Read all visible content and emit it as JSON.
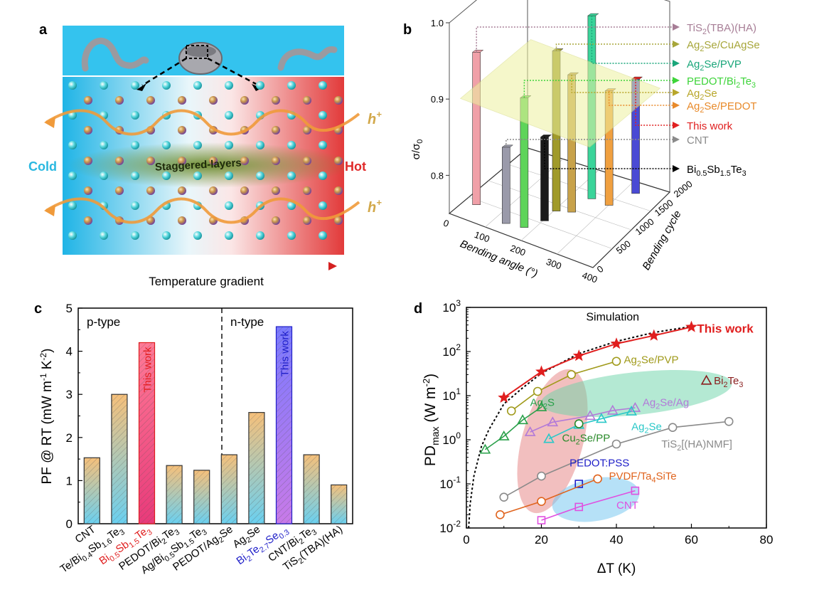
{
  "panel_labels": {
    "a": "a",
    "b": "b",
    "c": "c",
    "d": "d"
  },
  "panel_a": {
    "cold_label": "Cold",
    "hot_label": "Hot",
    "layers_label": "Staggered-layers",
    "carrier_label": "h",
    "carrier_sup": "+",
    "gradient_label": "Temperature gradient",
    "colors": {
      "cold": "#3ac8e6",
      "hot": "#e43a3a",
      "arrow": "#f08a2a",
      "layer_band": "#7e9c3a"
    }
  },
  "panel_b": {
    "zlabel": "σ/σ",
    "zlabel_sub": "0",
    "xlabel": "Bending angle (°)",
    "ylabel": "Bending cycle",
    "z_ticks": [
      "0.8",
      "0.9",
      "1.0"
    ],
    "x_ticks": [
      "0",
      "100",
      "200",
      "300",
      "400"
    ],
    "y_ticks": [
      "0",
      "500",
      "1000",
      "1500",
      "2000"
    ],
    "legend": [
      {
        "name": "TiS2(TBA)(HA)",
        "parts": [
          [
            "TiS",
            ""
          ],
          [
            "2",
            "sub"
          ],
          [
            "(TBA)(HA)",
            ""
          ]
        ],
        "color": "#a77e96"
      },
      {
        "name": "Ag2Se/CuAgSe",
        "parts": [
          [
            "Ag",
            ""
          ],
          [
            "2",
            "sub"
          ],
          [
            "Se/CuAgSe",
            ""
          ]
        ],
        "color": "#a7a63a"
      },
      {
        "name": "Ag2Se/PVP",
        "parts": [
          [
            "Ag",
            ""
          ],
          [
            "2",
            "sub"
          ],
          [
            "Se/PVP",
            ""
          ]
        ],
        "color": "#1aa67a"
      },
      {
        "name": "PEDOT/Bi2Te3",
        "parts": [
          [
            "PEDOT/Bi",
            ""
          ],
          [
            "2",
            "sub"
          ],
          [
            "Te",
            ""
          ],
          [
            "3",
            "sub"
          ]
        ],
        "color": "#3ed43a"
      },
      {
        "name": "Ag2Se",
        "parts": [
          [
            "Ag",
            ""
          ],
          [
            "2",
            "sub"
          ],
          [
            "Se",
            ""
          ]
        ],
        "color": "#b8a62a"
      },
      {
        "name": "Ag2Se/PEDOT",
        "parts": [
          [
            "Ag",
            ""
          ],
          [
            "2",
            "sub"
          ],
          [
            "Se/PEDOT",
            ""
          ]
        ],
        "color": "#e88a2a"
      },
      {
        "name": "This work",
        "parts": [
          [
            "This work",
            ""
          ]
        ],
        "color": "#e02020"
      },
      {
        "name": "CNT",
        "parts": [
          [
            "CNT",
            ""
          ]
        ],
        "color": "#8a8a8a"
      },
      {
        "name": "Bi0.5Sb1.5Te3",
        "parts": [
          [
            "Bi",
            ""
          ],
          [
            "0.5",
            "sub"
          ],
          [
            "Sb",
            ""
          ],
          [
            "1.5",
            "sub"
          ],
          [
            "Te",
            ""
          ],
          [
            "3",
            "sub"
          ]
        ],
        "color": "#000000"
      }
    ]
  },
  "chart_data": [
    {
      "panel": "b",
      "type": "bar",
      "title": "",
      "xlabel": "Bending angle (°)",
      "ylabel": "Bending cycle",
      "zlabel": "σ/σ0",
      "zlim": [
        0.75,
        1.0
      ],
      "series": [
        {
          "name": "TiS2(TBA)(HA)",
          "value": 0.95,
          "color": "#f0a0a8"
        },
        {
          "name": "CNT",
          "value": 0.85,
          "color": "#9a9aaa"
        },
        {
          "name": "PEDOT/Bi2Te3",
          "value": 0.92,
          "color": "#5ed45a"
        },
        {
          "name": "Ag2Se/CuAgSe",
          "value": 0.96,
          "color": "#a09a2a"
        },
        {
          "name": "Bi0.5Sb1.5Te3",
          "value": 0.86,
          "color": "#1a1a1a"
        },
        {
          "name": "Ag2Se",
          "value": 0.93,
          "color": "#c8a24a"
        },
        {
          "name": "Ag2Se/PVP",
          "value": 0.99,
          "color": "#3ad49a"
        },
        {
          "name": "Ag2Se/PEDOT",
          "value": 0.9,
          "color": "#f0a040"
        },
        {
          "name": "This work",
          "value": 0.9,
          "color": "#4a4ad4"
        }
      ],
      "plane_value": 0.9
    },
    {
      "panel": "c",
      "type": "bar",
      "title": "",
      "xlabel": "",
      "ylabel": "PF @ RT (mW m-1 K-2)",
      "ylim": [
        0,
        5
      ],
      "yticks": [
        "0",
        "1",
        "2",
        "3",
        "4",
        "5"
      ],
      "region_labels": [
        "p-type",
        "n-type"
      ],
      "annotation": "This work",
      "categories": [
        {
          "label": "CNT",
          "parts": [
            [
              "CNT",
              ""
            ]
          ],
          "color": "#000000",
          "value": 1.53,
          "highlight": false
        },
        {
          "label": "Te/Bi0.4Sb1.6Te3",
          "parts": [
            [
              "Te/Bi",
              ""
            ],
            [
              "0.4",
              "sub"
            ],
            [
              "Sb",
              ""
            ],
            [
              "1.6",
              "sub"
            ],
            [
              "Te",
              ""
            ],
            [
              "3",
              "sub"
            ]
          ],
          "color": "#000000",
          "value": 3.0,
          "highlight": false
        },
        {
          "label": "Bi0.5Sb1.5Te3",
          "parts": [
            [
              "Bi",
              ""
            ],
            [
              "0.5",
              "sub"
            ],
            [
              "Sb",
              ""
            ],
            [
              "1.5",
              "sub"
            ],
            [
              "Te",
              ""
            ],
            [
              "3",
              "sub"
            ]
          ],
          "color": "#e01e1e",
          "value": 4.2,
          "highlight": "red"
        },
        {
          "label": "PEDOT/Bi2Te3",
          "parts": [
            [
              "PEDOT/Bi",
              ""
            ],
            [
              "2",
              "sub"
            ],
            [
              "Te",
              ""
            ],
            [
              "3",
              "sub"
            ]
          ],
          "color": "#000000",
          "value": 1.35,
          "highlight": false
        },
        {
          "label": "Ag/Bi0.5Sb1.5Te3",
          "parts": [
            [
              "Ag/Bi",
              ""
            ],
            [
              "0.5",
              "sub"
            ],
            [
              "Sb",
              ""
            ],
            [
              "1.5",
              "sub"
            ],
            [
              "Te",
              ""
            ],
            [
              "3",
              "sub"
            ]
          ],
          "color": "#000000",
          "value": 1.24,
          "highlight": false
        },
        {
          "label": "PEDOT/Ag2Se",
          "parts": [
            [
              "PEDOT/Ag",
              ""
            ],
            [
              "2",
              "sub"
            ],
            [
              "Se",
              ""
            ]
          ],
          "color": "#000000",
          "value": 1.6,
          "highlight": false
        },
        {
          "label": "Ag2Se",
          "parts": [
            [
              "Ag",
              ""
            ],
            [
              "2",
              "sub"
            ],
            [
              "Se",
              ""
            ]
          ],
          "color": "#000000",
          "value": 2.58,
          "highlight": false
        },
        {
          "label": "Bi2Te2.7Se0.3",
          "parts": [
            [
              "Bi",
              ""
            ],
            [
              "2",
              "sub"
            ],
            [
              "Te",
              ""
            ],
            [
              "2.7",
              "sub"
            ],
            [
              "Se",
              ""
            ],
            [
              "0.3",
              "sub"
            ]
          ],
          "color": "#1e1ec8",
          "value": 4.57,
          "highlight": "blue"
        },
        {
          "label": "CNT/Bi2Te3",
          "parts": [
            [
              "CNT/Bi",
              ""
            ],
            [
              "2",
              "sub"
            ],
            [
              "Te",
              ""
            ],
            [
              "3",
              "sub"
            ]
          ],
          "color": "#000000",
          "value": 1.6,
          "highlight": false
        },
        {
          "label": "TiS2(TBA)(HA)",
          "parts": [
            [
              "TiS",
              ""
            ],
            [
              "2",
              "sub"
            ],
            [
              "(TBA)(HA)",
              ""
            ]
          ],
          "color": "#000000",
          "value": 0.9,
          "highlight": false
        }
      ]
    },
    {
      "panel": "d",
      "type": "line",
      "title": "",
      "xlabel": "ΔT (K)",
      "ylabel": "PDmax (W m-2)",
      "xlim": [
        0,
        80
      ],
      "ylim_log10": [
        -2,
        3
      ],
      "xticks": [
        "0",
        "20",
        "40",
        "60",
        "80"
      ],
      "yticks": [
        "10-2",
        "10-1",
        "100",
        "101",
        "102",
        "103"
      ],
      "simulation_label": "Simulation",
      "simulation": {
        "x": [
          0.6,
          1,
          2,
          4,
          6,
          10,
          15,
          20,
          30,
          40,
          50,
          60
        ],
        "y": [
          0.01,
          0.035,
          0.15,
          0.7,
          1.7,
          6.5,
          15,
          32,
          90,
          170,
          270,
          370
        ]
      },
      "series": [
        {
          "name": "This work",
          "marker": "star",
          "color": "#e01e1e",
          "x": [
            10,
            20,
            30,
            40,
            50,
            60
          ],
          "y": [
            9,
            35,
            80,
            150,
            230,
            360
          ],
          "label_pos": [
            61.5,
            320
          ],
          "bold": true,
          "parts": [
            [
              "This work",
              ""
            ]
          ]
        },
        {
          "name": "Ag2Se/PVP",
          "marker": "circle",
          "color": "#a09a1a",
          "x": [
            12,
            19,
            28,
            40
          ],
          "y": [
            4.5,
            12.5,
            30,
            60
          ],
          "label_pos": [
            42,
            65
          ],
          "parts": [
            [
              "Ag",
              ""
            ],
            [
              "2",
              "sub"
            ],
            [
              "Se/PVP",
              ""
            ]
          ]
        },
        {
          "name": "Bi2Te3",
          "marker": "triangle",
          "color": "#8a1e1e",
          "x": [
            64
          ],
          "y": [
            22
          ],
          "label_pos": [
            66,
            22
          ],
          "parts": [
            [
              "Bi",
              ""
            ],
            [
              "2",
              "sub"
            ],
            [
              "Te",
              ""
            ],
            [
              "3",
              "sub"
            ]
          ]
        },
        {
          "name": "Ag2S",
          "marker": "triangle",
          "color": "#2aa04a",
          "x": [
            5,
            10,
            15,
            20
          ],
          "y": [
            0.6,
            1.2,
            2.8,
            5.5
          ],
          "label_pos": [
            17,
            7
          ],
          "parts": [
            [
              "Ag",
              ""
            ],
            [
              "2",
              "sub"
            ],
            [
              "S",
              ""
            ]
          ]
        },
        {
          "name": "Ag2Se/Ag",
          "marker": "triangle",
          "color": "#b27ad8",
          "x": [
            17,
            23,
            33,
            39,
            45
          ],
          "y": [
            1.5,
            2.5,
            3.5,
            4.6,
            5.3
          ],
          "label_pos": [
            47,
            7
          ],
          "parts": [
            [
              "Ag",
              ""
            ],
            [
              "2",
              "sub"
            ],
            [
              "Se/Ag",
              ""
            ]
          ]
        },
        {
          "name": "Ag2Se",
          "marker": "triangle",
          "color": "#2ac8c8",
          "x": [
            22,
            30,
            36,
            44
          ],
          "y": [
            1.05,
            2.2,
            3.0,
            4.4
          ],
          "label_pos": [
            44,
            2.0
          ],
          "parts": [
            [
              "Ag",
              ""
            ],
            [
              "2",
              "sub"
            ],
            [
              "Se",
              ""
            ]
          ]
        },
        {
          "name": "Cu2Se/PP",
          "marker": "circle",
          "color": "#2a8a2a",
          "x": [
            30
          ],
          "y": [
            2.3
          ],
          "label_pos": [
            25.5,
            1.1
          ],
          "parts": [
            [
              "Cu",
              ""
            ],
            [
              "2",
              "sub"
            ],
            [
              "Se/PP",
              ""
            ]
          ]
        },
        {
          "name": "TiS2[(HA)NMF]",
          "marker": "circle",
          "color": "#8a8a8a",
          "x": [
            10,
            20,
            40,
            55,
            70
          ],
          "y": [
            0.05,
            0.15,
            0.8,
            1.9,
            2.6
          ],
          "label_pos": [
            52,
            0.8
          ],
          "parts": [
            [
              "TiS",
              ""
            ],
            [
              "2",
              "sub"
            ],
            [
              "[(HA)NMF]",
              ""
            ]
          ]
        },
        {
          "name": "PEDOT:PSS",
          "marker": "square",
          "color": "#1e1ec8",
          "x": [
            30
          ],
          "y": [
            0.1
          ],
          "label_pos": [
            27.5,
            0.3
          ],
          "parts": [
            [
              "PEDOT:PSS",
              ""
            ]
          ]
        },
        {
          "name": "PVDF/Ta4SiTe",
          "marker": "circle",
          "color": "#e0641e",
          "x": [
            9,
            20,
            35
          ],
          "y": [
            0.02,
            0.04,
            0.13
          ],
          "label_pos": [
            38,
            0.15
          ],
          "parts": [
            [
              "PVDF/Ta",
              ""
            ],
            [
              "4",
              "sub"
            ],
            [
              "SiTe",
              ""
            ]
          ]
        },
        {
          "name": "CNT",
          "marker": "square",
          "color": "#e050e0",
          "x": [
            20,
            30,
            45
          ],
          "y": [
            0.015,
            0.03,
            0.07
          ],
          "label_pos": [
            40,
            0.033
          ],
          "parts": [
            [
              "CNT",
              ""
            ]
          ]
        }
      ]
    }
  ]
}
